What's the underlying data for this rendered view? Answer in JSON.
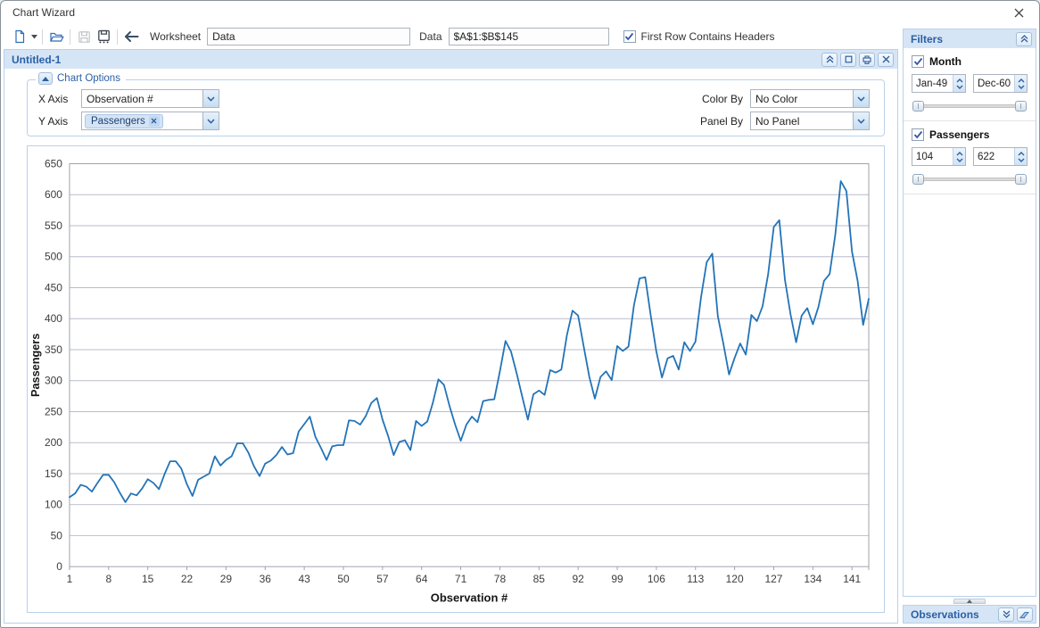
{
  "window": {
    "title": "Chart Wizard"
  },
  "toolbar": {
    "worksheet_label": "Worksheet",
    "worksheet_value": "Data",
    "data_label": "Data",
    "data_value": "$A$1:$B$145",
    "first_row_label": "First Row Contains Headers",
    "first_row_checked": true
  },
  "document": {
    "title": "Untitled-1",
    "chart_options": {
      "legend": "Chart Options",
      "x_axis_label": "X Axis",
      "x_axis_value": "Observation #",
      "y_axis_label": "Y Axis",
      "y_axis_tag": "Passengers",
      "color_by_label": "Color By",
      "color_by_value": "No Color",
      "panel_by_label": "Panel By",
      "panel_by_value": "No Panel"
    }
  },
  "filters": {
    "title": "Filters",
    "month": {
      "label": "Month",
      "checked": true,
      "min": "Jan-49",
      "max": "Dec-60"
    },
    "passengers": {
      "label": "Passengers",
      "checked": true,
      "min": "104",
      "max": "622"
    }
  },
  "observations": {
    "title": "Observations"
  },
  "colors": {
    "accent_header_bg": "#d6e5f5",
    "accent_header_text": "#2a5fa5",
    "panel_border": "#b9d1ea"
  },
  "chart_data": {
    "type": "line",
    "title": "",
    "xlabel": "Observation #",
    "ylabel": "Passengers",
    "xlim": [
      1,
      144
    ],
    "ylim": [
      0,
      650
    ],
    "y_tick_step": 50,
    "x_ticks": [
      1,
      8,
      15,
      22,
      29,
      36,
      43,
      50,
      57,
      64,
      71,
      78,
      85,
      92,
      99,
      106,
      113,
      120,
      127,
      134,
      141
    ],
    "grid_on": true,
    "legend_position": "none",
    "line_color": "#2273b8",
    "grid_color": "#babccb",
    "axis_color": "#9fa3ac",
    "series": [
      {
        "name": "Passengers",
        "values": [
          112,
          118,
          132,
          129,
          121,
          135,
          148,
          148,
          136,
          119,
          104,
          118,
          115,
          126,
          141,
          135,
          125,
          149,
          170,
          170,
          158,
          133,
          114,
          140,
          145,
          150,
          178,
          163,
          172,
          178,
          199,
          199,
          184,
          162,
          146,
          166,
          171,
          180,
          193,
          181,
          183,
          218,
          230,
          242,
          209,
          191,
          172,
          194,
          196,
          196,
          236,
          235,
          229,
          243,
          264,
          272,
          237,
          211,
          180,
          201,
          204,
          188,
          235,
          227,
          234,
          264,
          302,
          293,
          259,
          229,
          203,
          229,
          242,
          233,
          267,
          269,
          270,
          315,
          364,
          347,
          312,
          274,
          237,
          278,
          284,
          277,
          317,
          313,
          318,
          374,
          413,
          405,
          355,
          306,
          271,
          306,
          315,
          301,
          356,
          348,
          355,
          422,
          465,
          467,
          404,
          347,
          305,
          336,
          340,
          318,
          362,
          348,
          363,
          435,
          491,
          505,
          404,
          359,
          310,
          337,
          360,
          342,
          406,
          396,
          420,
          472,
          548,
          559,
          463,
          407,
          362,
          405,
          417,
          391,
          419,
          461,
          472,
          535,
          622,
          606,
          508,
          461,
          390,
          432
        ]
      }
    ]
  }
}
